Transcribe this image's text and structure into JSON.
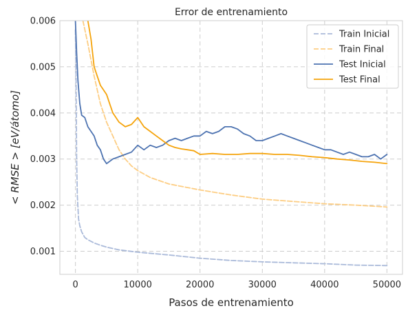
{
  "chart_data": {
    "type": "line",
    "title": "Error de entrenamiento",
    "xlabel": "Pasos de entrenamiento",
    "ylabel": "< RMSE > [eV/átomo]",
    "xlim": [
      -2500,
      52500
    ],
    "ylim": [
      0.0005,
      0.006
    ],
    "xticks": [
      0,
      10000,
      20000,
      30000,
      40000,
      50000
    ],
    "yticks": [
      0.001,
      0.002,
      0.003,
      0.004,
      0.005,
      0.006
    ],
    "ytick_labels": [
      "0.001",
      "0.002",
      "0.003",
      "0.004",
      "0.005",
      "0.006"
    ],
    "grid": true,
    "legend_position": "top-right",
    "series": [
      {
        "name": "Train Inicial",
        "color": "#a9b9d9",
        "dash": "dashed",
        "x": [
          0,
          100,
          200,
          300,
          500,
          700,
          1000,
          1500,
          2000,
          3000,
          4000,
          5000,
          7000,
          10000,
          15000,
          20000,
          25000,
          30000,
          35000,
          40000,
          45000,
          50000
        ],
        "y": [
          0.0058,
          0.0048,
          0.003,
          0.0022,
          0.0017,
          0.00155,
          0.00142,
          0.0013,
          0.00125,
          0.00118,
          0.00113,
          0.00109,
          0.00103,
          0.00098,
          0.00092,
          0.00085,
          0.0008,
          0.00077,
          0.00075,
          0.00073,
          0.0007,
          0.00069
        ]
      },
      {
        "name": "Train Final",
        "color": "#fdcd82",
        "dash": "dashed",
        "x": [
          1200,
          2000,
          3000,
          4000,
          5000,
          6000,
          7000,
          8000,
          9000,
          10000,
          12000,
          15000,
          20000,
          25000,
          30000,
          35000,
          40000,
          45000,
          50000
        ],
        "y": [
          0.006,
          0.0055,
          0.0048,
          0.0042,
          0.0038,
          0.0035,
          0.0032,
          0.003,
          0.00285,
          0.00275,
          0.0026,
          0.00246,
          0.00233,
          0.00222,
          0.00213,
          0.00208,
          0.00203,
          0.002,
          0.00196
        ]
      },
      {
        "name": "Test Inicial",
        "color": "#4c72b0",
        "dash": "solid",
        "x": [
          0,
          200,
          400,
          700,
          1000,
          1500,
          2000,
          2500,
          3000,
          3500,
          4000,
          4500,
          5000,
          6000,
          7000,
          8000,
          9000,
          10000,
          11000,
          12000,
          13000,
          14000,
          15000,
          16000,
          17000,
          18000,
          19000,
          20000,
          21000,
          22000,
          23000,
          24000,
          25000,
          26000,
          27000,
          28000,
          29000,
          30000,
          31000,
          32000,
          33000,
          34000,
          35000,
          36000,
          37000,
          38000,
          39000,
          40000,
          41000,
          42000,
          43000,
          44000,
          45000,
          46000,
          47000,
          48000,
          49000,
          50000
        ],
        "y": [
          0.006,
          0.0053,
          0.0047,
          0.0042,
          0.00395,
          0.0039,
          0.0037,
          0.0036,
          0.0035,
          0.0033,
          0.0032,
          0.003,
          0.0029,
          0.003,
          0.00305,
          0.0031,
          0.00315,
          0.0033,
          0.0032,
          0.0033,
          0.00325,
          0.0033,
          0.0034,
          0.00345,
          0.0034,
          0.00345,
          0.0035,
          0.0035,
          0.0036,
          0.00355,
          0.0036,
          0.0037,
          0.0037,
          0.00365,
          0.00355,
          0.0035,
          0.0034,
          0.0034,
          0.00345,
          0.0035,
          0.00355,
          0.0035,
          0.00345,
          0.0034,
          0.00335,
          0.0033,
          0.00325,
          0.0032,
          0.0032,
          0.00315,
          0.0031,
          0.00315,
          0.0031,
          0.00305,
          0.00305,
          0.0031,
          0.003,
          0.0031
        ]
      },
      {
        "name": "Test Final",
        "color": "#f5a30a",
        "dash": "solid",
        "x": [
          2000,
          2500,
          3000,
          3500,
          4000,
          4500,
          5000,
          5500,
          6000,
          7000,
          8000,
          9000,
          10000,
          11000,
          12000,
          13000,
          14000,
          15000,
          16000,
          17000,
          18000,
          19000,
          20000,
          22000,
          24000,
          26000,
          28000,
          30000,
          32000,
          34000,
          36000,
          38000,
          40000,
          42000,
          44000,
          46000,
          48000,
          50000
        ],
        "y": [
          0.006,
          0.0056,
          0.005,
          0.0048,
          0.0046,
          0.0045,
          0.0044,
          0.0042,
          0.004,
          0.0038,
          0.0037,
          0.00375,
          0.0039,
          0.0037,
          0.0036,
          0.0035,
          0.0034,
          0.0033,
          0.00325,
          0.00322,
          0.0032,
          0.00318,
          0.0031,
          0.00312,
          0.0031,
          0.0031,
          0.00312,
          0.00312,
          0.0031,
          0.0031,
          0.00308,
          0.00305,
          0.00303,
          0.003,
          0.00298,
          0.00295,
          0.00293,
          0.0029
        ]
      }
    ]
  }
}
